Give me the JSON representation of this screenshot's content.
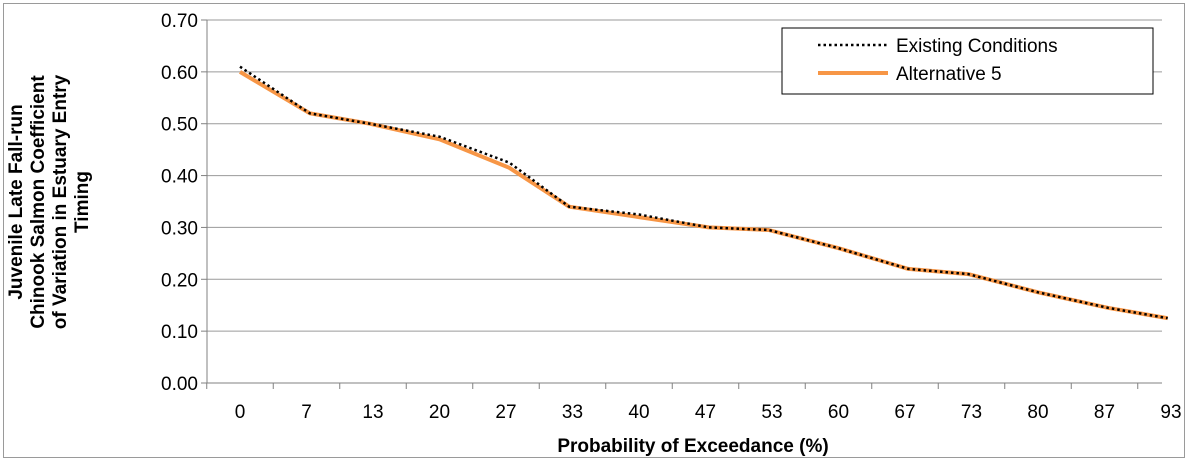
{
  "chart_data": {
    "type": "line",
    "title": "",
    "xlabel": "Probability of Exceedance (%)",
    "ylabel_lines": [
      "Juvenile Late Fall-run",
      "Chinook Salmon Coefficient",
      "of Variation in Estuary Entry",
      "Timing"
    ],
    "categories": [
      "0",
      "7",
      "13",
      "20",
      "27",
      "33",
      "40",
      "47",
      "53",
      "60",
      "67",
      "73",
      "80",
      "87",
      "93"
    ],
    "ylim": [
      0,
      0.7
    ],
    "yticks": [
      "0.00",
      "0.10",
      "0.20",
      "0.30",
      "0.40",
      "0.50",
      "0.60",
      "0.70"
    ],
    "grid": true,
    "legend_position": "top-right",
    "series": [
      {
        "name": "Existing Conditions",
        "style": "dotted",
        "color": "#000000",
        "x": [
          0,
          7,
          13,
          20,
          27,
          33,
          40,
          47,
          53,
          60,
          67,
          73,
          80,
          87,
          93
        ],
        "y": [
          0.61,
          0.52,
          0.5,
          0.475,
          0.425,
          0.34,
          0.325,
          0.3,
          0.295,
          0.26,
          0.22,
          0.21,
          0.175,
          0.145,
          0.125
        ]
      },
      {
        "name": "Alternative 5",
        "style": "solid",
        "color": "#F79646",
        "x": [
          0,
          7,
          13,
          20,
          27,
          33,
          40,
          47,
          53,
          60,
          67,
          73,
          80,
          87,
          93
        ],
        "y": [
          0.6,
          0.52,
          0.5,
          0.47,
          0.415,
          0.34,
          0.32,
          0.3,
          0.295,
          0.26,
          0.22,
          0.21,
          0.175,
          0.145,
          0.125
        ]
      }
    ]
  }
}
